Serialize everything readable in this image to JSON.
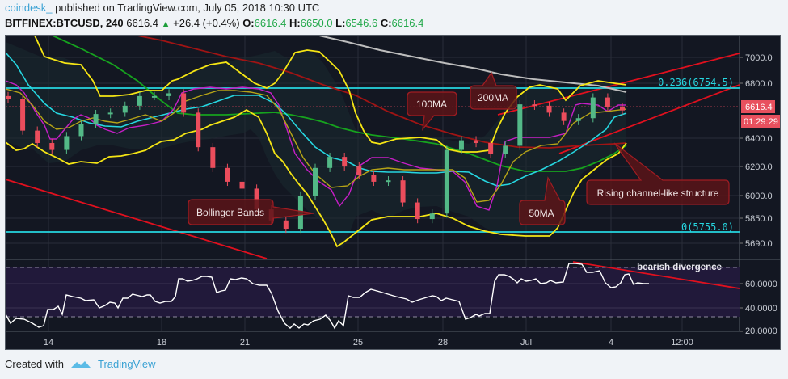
{
  "header": {
    "author": "coindesk_",
    "published_text": "published on TradingView.com, July 05, 2018 10:30 UTC",
    "symbol": "BITFINEX:BTCUSD, 240",
    "last": "6616.4",
    "change_arrow": "▲",
    "change": "+26.4 (+0.4%)",
    "o_label": "O:",
    "o_value": "6616.4",
    "h_label": "H:",
    "h_value": "6650.0",
    "l_label": "L:",
    "l_value": "6546.6",
    "c_label": "C:",
    "c_value": "6616.4"
  },
  "price_axis": {
    "ticks": [
      "7000.0",
      "6800.0",
      "6400.0",
      "6200.0",
      "6000.0",
      "5850.0",
      "5690.0"
    ],
    "current_price": "6616.4",
    "countdown": "01:29:29"
  },
  "rsi_axis": {
    "ticks": [
      "60.0000",
      "40.0000",
      "20.0000"
    ]
  },
  "time_axis": {
    "ticks": [
      "14",
      "18",
      "21",
      "25",
      "28",
      "Jul",
      "4",
      "12:00"
    ]
  },
  "annotations": {
    "fib_top": "0.236(6754.5)",
    "fib_bottom": "0(5755.0)",
    "ma100": "100MA",
    "ma200": "200MA",
    "ma50": "50MA",
    "bollinger": "Bollinger Bands",
    "channel": "Rising channel-like structure",
    "divergence": "bearish divergence"
  },
  "footer": {
    "created_with": "Created with",
    "brand": "TradingView"
  },
  "colors": {
    "background": "#131722",
    "up_candle": "#53b987",
    "down_candle": "#eb4d5c",
    "bollinger": "#f5e514",
    "ma50": "#16a31e",
    "ma100": "#a01414",
    "ma200": "#bdbdbd",
    "ema_fast": "#c61ec6",
    "ema_cyan": "#26d6e0",
    "fib": "#26d6e0",
    "trendline": "#e0101e",
    "rsi_line": "#ffffff",
    "rsi_band": "#21193a",
    "price_tag": "#e8505e"
  },
  "chart_data": {
    "type": "candlestick",
    "title": "BITFINEX:BTCUSD, 240",
    "interval": "4h",
    "x_ticks": [
      "14",
      "18",
      "21",
      "25",
      "28",
      "Jul",
      "4",
      "12:00"
    ],
    "y_ticks": [
      5690,
      5850,
      6000,
      6200,
      6400,
      6800,
      7000
    ],
    "ylim": [
      5620,
      7080
    ],
    "last_ohlc": {
      "open": 6616.4,
      "high": 6650.0,
      "low": 6546.6,
      "close": 6616.4
    },
    "change": 26.4,
    "change_pct": 0.4,
    "fibonacci": [
      {
        "level": 0.236,
        "price": 6754.5
      },
      {
        "level": 0,
        "price": 5755.0
      }
    ],
    "approx_closes": [
      6700,
      6470,
      6380,
      6330,
      6430,
      6520,
      6590,
      6600,
      6650,
      6720,
      6720,
      6740,
      6600,
      6350,
      6200,
      6100,
      6050,
      5900,
      5820,
      5760,
      6000,
      6200,
      6280,
      6210,
      6150,
      6100,
      6110,
      5950,
      5830,
      5870,
      6330,
      6400,
      6380,
      6300,
      6360,
      6660,
      6650,
      6600,
      6540,
      6560,
      6710,
      6640,
      6616
    ],
    "indicators": [
      "Bollinger Bands",
      "50MA",
      "100MA",
      "200MA",
      "EMA"
    ],
    "rsi": {
      "ylim": [
        15,
        75
      ],
      "ticks": [
        20,
        40,
        60
      ],
      "overbought": 70,
      "oversold": 30,
      "approx_values": [
        28,
        25,
        27,
        25,
        23,
        34,
        36,
        31,
        48,
        47,
        45,
        43,
        36,
        38,
        42,
        38,
        44,
        48,
        45,
        47,
        42,
        40,
        43,
        57,
        59,
        61,
        60,
        61,
        54,
        52,
        42,
        28,
        23,
        26,
        24,
        28,
        30,
        28,
        24,
        45,
        44,
        42,
        44,
        47,
        45,
        46,
        30,
        34,
        42,
        44,
        46,
        60,
        62,
        61,
        57,
        55,
        56,
        54,
        55,
        71,
        71,
        67,
        68,
        58,
        56,
        65,
        62,
        60
      ],
      "annotation": "bearish divergence"
    }
  }
}
